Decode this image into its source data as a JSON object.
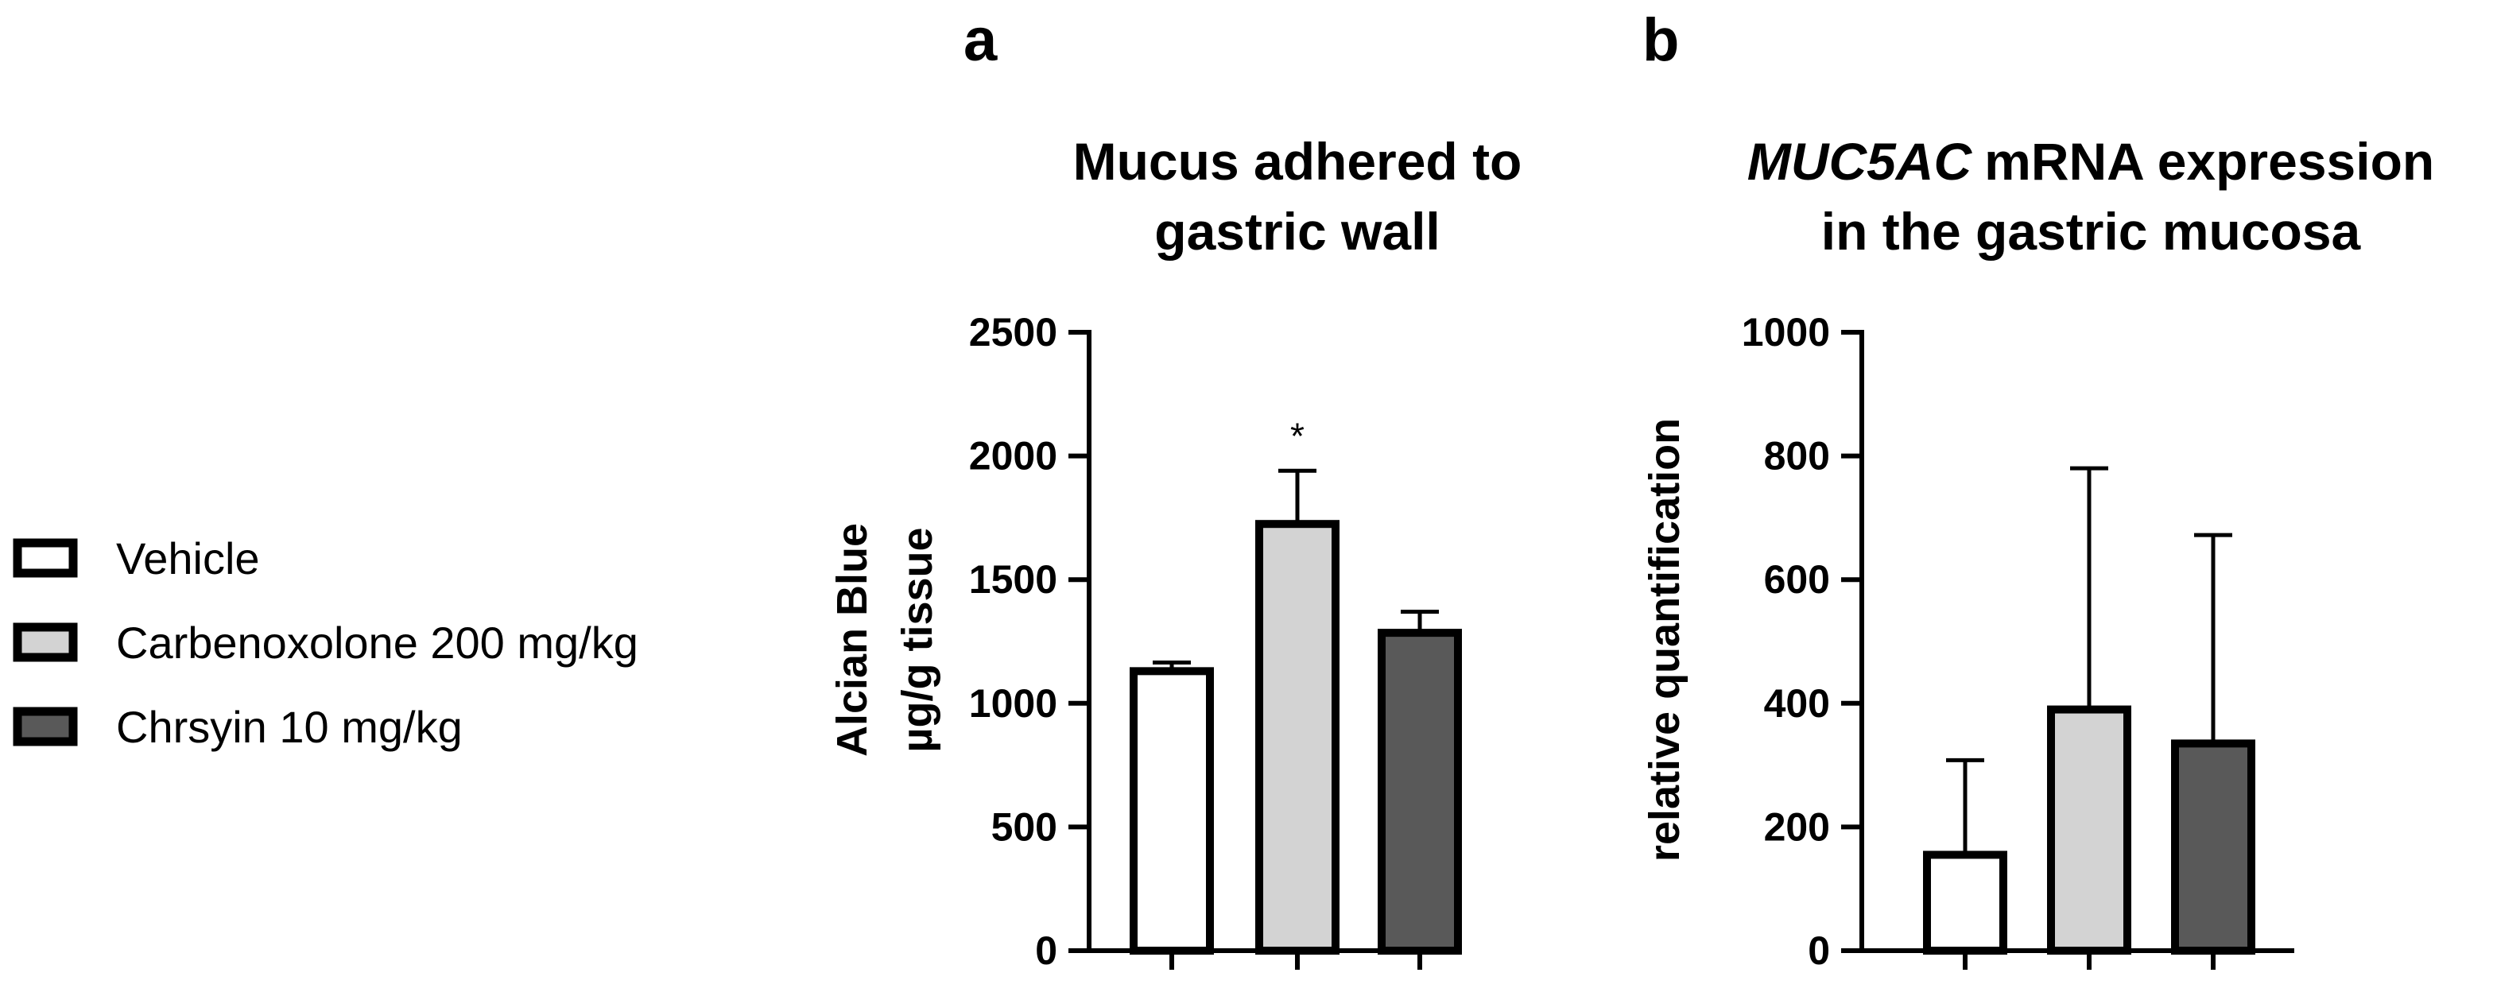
{
  "legend": {
    "items": [
      {
        "label": "Vehicle",
        "color": "#ffffff"
      },
      {
        "label": "Carbenoxolone 200 mg/kg",
        "color": "#d3d3d3"
      },
      {
        "label": "Chrsyin 10 mg/kg",
        "color": "#595959"
      }
    ]
  },
  "chart_data": [
    {
      "type": "bar",
      "panel": "a",
      "title": [
        "Mucus adhered to",
        "gastric wall"
      ],
      "ylabel": [
        "Alcian Blue",
        "µg/g tissue"
      ],
      "xlabel": "",
      "ylim": [
        0,
        2500
      ],
      "yticks": [
        0,
        500,
        1000,
        1500,
        2000,
        2500
      ],
      "categories": [
        "Vehicle",
        "Carbenoxolone 200 mg/kg",
        "Chrsyin 10 mg/kg"
      ],
      "values": [
        1130,
        1725,
        1285
      ],
      "errors": [
        35,
        215,
        85
      ],
      "colors": [
        "#ffffff",
        "#d3d3d3",
        "#595959"
      ],
      "annotations": [
        "",
        "*",
        ""
      ],
      "grid": false,
      "legend": "left"
    },
    {
      "type": "bar",
      "panel": "b",
      "title": [
        "MUC5AC",
        "mRNA expression",
        "in the gastric mucosa"
      ],
      "ylabel": [
        "relative quantification"
      ],
      "xlabel": "",
      "ylim": [
        0,
        1000
      ],
      "yticks": [
        0,
        200,
        400,
        600,
        800,
        1000
      ],
      "categories": [
        "Vehicle",
        "Carbenoxolone 200 mg/kg",
        "Chrsyin 10 mg/kg"
      ],
      "values": [
        155,
        390,
        335
      ],
      "errors": [
        153,
        390,
        337
      ],
      "colors": [
        "#ffffff",
        "#d3d3d3",
        "#595959"
      ],
      "annotations": [
        "",
        "",
        ""
      ],
      "grid": false,
      "legend": "left"
    }
  ]
}
